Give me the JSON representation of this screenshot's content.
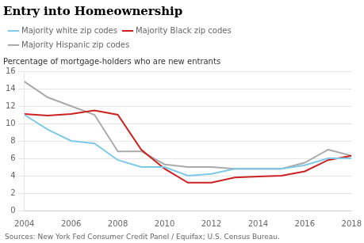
{
  "chart_data": {
    "type": "line",
    "title": "Entry into Homeownership",
    "ylabel": "Percentage of mortgage-holders who are new entrants",
    "annotations": [
      "Sources: New York Fed Consumer Credit Panel / Equifax; U.S. Census Bureau."
    ],
    "x": [
      2004,
      2005,
      2006,
      2007,
      2008,
      2009,
      2010,
      2011,
      2012,
      2013,
      2014,
      2015,
      2016,
      2017,
      2018
    ],
    "series": [
      {
        "name": "Majority white zip codes",
        "color": "#7ec8e8",
        "values": [
          11.0,
          9.3,
          8.0,
          7.7,
          5.8,
          5.0,
          5.0,
          4.0,
          4.2,
          4.8,
          4.8,
          4.8,
          5.2,
          6.0,
          6.0
        ]
      },
      {
        "name": "Majority Black zip codes",
        "color": "#cc2222",
        "values": [
          11.1,
          10.9,
          11.1,
          11.5,
          11.0,
          7.0,
          4.8,
          3.2,
          3.2,
          3.8,
          3.9,
          4.0,
          4.5,
          5.8,
          6.3
        ]
      },
      {
        "name": "Majority Hispanic zip codes",
        "color": "#aaaaaa",
        "values": [
          14.8,
          13.0,
          12.0,
          11.0,
          6.8,
          6.8,
          5.3,
          5.0,
          5.0,
          4.8,
          4.8,
          4.8,
          5.5,
          7.0,
          6.3
        ]
      }
    ],
    "xlim": [
      2004,
      2018
    ],
    "xticks": [
      2004,
      2006,
      2008,
      2010,
      2012,
      2014,
      2016,
      2018
    ],
    "ylim": [
      0,
      16
    ],
    "yticks": [
      0,
      2,
      4,
      6,
      8,
      10,
      12,
      14,
      16
    ],
    "grid": true,
    "legend": "top"
  }
}
